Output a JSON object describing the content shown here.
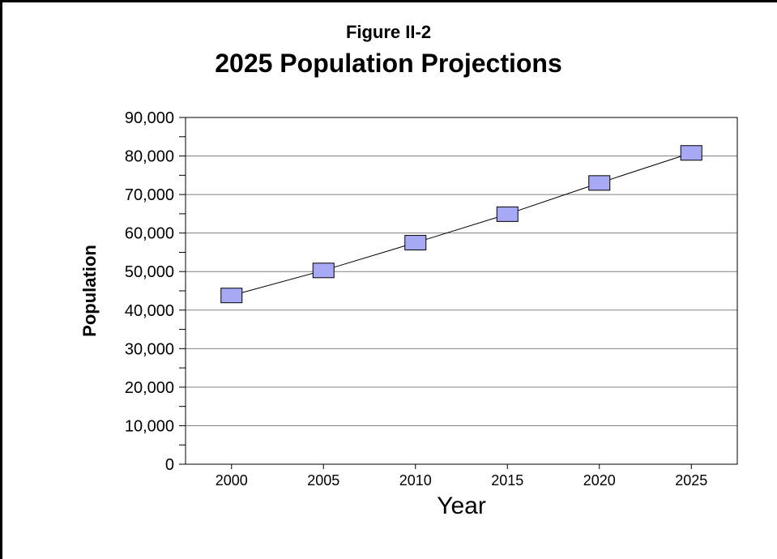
{
  "figure_label": "Figure II-2",
  "colors": {
    "marker_fill": "#a7a9f5",
    "marker_stroke": "#000000",
    "line": "#000000",
    "grid": "#808080"
  },
  "chart_data": {
    "type": "line",
    "title": "2025 Population Projections",
    "xlabel": "Year",
    "ylabel": "Population",
    "categories": [
      "2000",
      "2005",
      "2010",
      "2015",
      "2020",
      "2025"
    ],
    "series": [
      {
        "values": [
          43800,
          50300,
          57500,
          64900,
          73000,
          80800
        ]
      }
    ],
    "ylim": [
      0,
      90000
    ],
    "yticks": [
      0,
      10000,
      20000,
      30000,
      40000,
      50000,
      60000,
      70000,
      80000,
      90000
    ],
    "ytick_labels": [
      "0",
      "10,000",
      "20,000",
      "30,000",
      "40,000",
      "50,000",
      "60,000",
      "70,000",
      "80,000",
      "90,000"
    ],
    "grid": true,
    "marker": "square"
  }
}
